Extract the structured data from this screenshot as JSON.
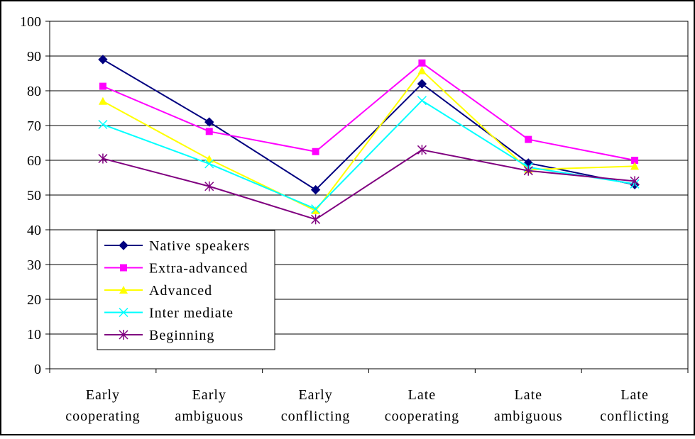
{
  "chart_data": {
    "type": "line",
    "title": "",
    "xlabel": "",
    "ylabel": "",
    "ylim": [
      0,
      100
    ],
    "yticks": [
      0,
      10,
      20,
      30,
      40,
      50,
      60,
      70,
      80,
      90,
      100
    ],
    "grid": "horizontal",
    "legend_position": "bottom-left",
    "categories": [
      [
        "Early",
        "cooperating"
      ],
      [
        "Early",
        "ambiguous"
      ],
      [
        "Early",
        "conflicting"
      ],
      [
        "Late",
        "cooperating"
      ],
      [
        "Late",
        "ambiguous"
      ],
      [
        "Late",
        "conflicting"
      ]
    ],
    "series": [
      {
        "name": "Native speakers",
        "color": "#000080",
        "marker": "diamond",
        "values": [
          89,
          71,
          51.5,
          82,
          59.2,
          53
        ]
      },
      {
        "name": "Extra-advanced",
        "color": "#FF00FF",
        "marker": "square",
        "values": [
          81.3,
          68.3,
          62.5,
          88,
          66,
          60
        ]
      },
      {
        "name": "Advanced",
        "color": "#FFFF00",
        "marker": "triangle",
        "values": [
          77,
          60.3,
          45.5,
          85.8,
          57.3,
          58.3
        ]
      },
      {
        "name": "Inter mediate",
        "color": "#00FFFF",
        "marker": "x",
        "values": [
          70.3,
          59,
          46,
          77.2,
          58,
          53.2
        ]
      },
      {
        "name": "Beginning",
        "color": "#800080",
        "marker": "star",
        "values": [
          60.5,
          52.5,
          43,
          63,
          57,
          54
        ]
      }
    ]
  }
}
